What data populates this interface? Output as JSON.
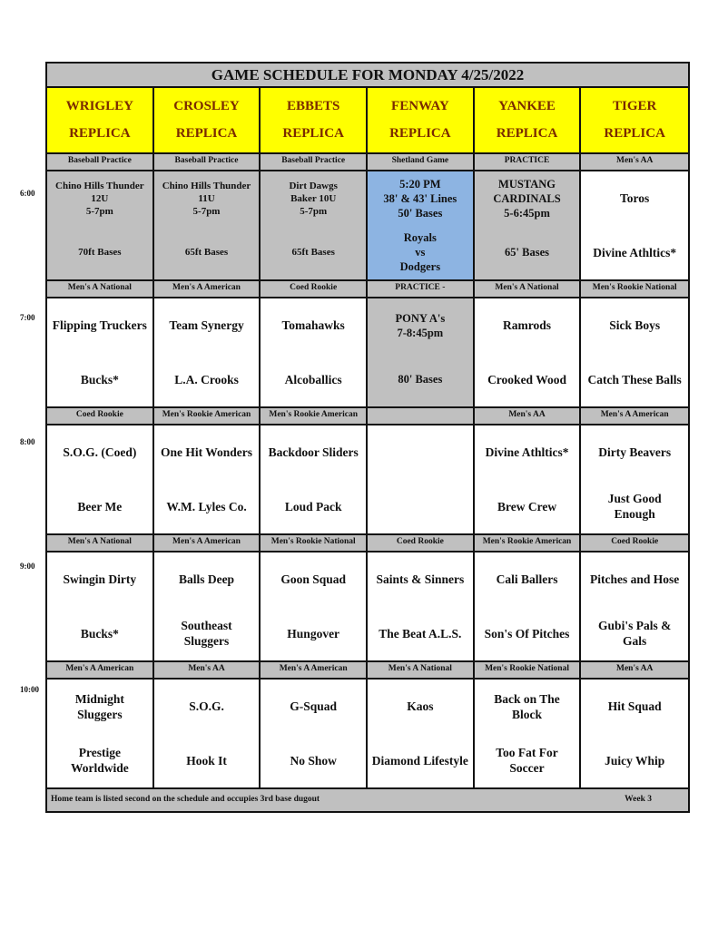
{
  "title": "GAME SCHEDULE FOR MONDAY 4/25/2022",
  "fields": [
    {
      "name": "WRIGLEY",
      "sub": "REPLICA"
    },
    {
      "name": "CROSLEY",
      "sub": "REPLICA"
    },
    {
      "name": "EBBETS",
      "sub": "REPLICA"
    },
    {
      "name": "FENWAY",
      "sub": "REPLICA"
    },
    {
      "name": "YANKEE",
      "sub": "REPLICA"
    },
    {
      "name": "TIGER",
      "sub": "REPLICA"
    }
  ],
  "colors": {
    "header": "#ffff00",
    "header_text": "#7a2a00",
    "label": "#c0c0c0",
    "practice": "#c0c0c0",
    "shetland": "#8db4e2",
    "game": "#ffffff"
  },
  "slots": [
    {
      "time": "6:00",
      "labels": [
        "Baseball Practice",
        "Baseball Practice",
        "Baseball Practice",
        "Shetland Game",
        "PRACTICE",
        "Men's AA"
      ],
      "cells": [
        {
          "bg": "#c0c0c0",
          "small": true,
          "top": [
            "Chino Hills Thunder",
            "12U",
            "5-7pm"
          ],
          "bottom": [
            "70ft Bases"
          ]
        },
        {
          "bg": "#c0c0c0",
          "small": true,
          "top": [
            "Chino Hills Thunder",
            "11U",
            "5-7pm"
          ],
          "bottom": [
            "65ft Bases"
          ]
        },
        {
          "bg": "#c0c0c0",
          "small": true,
          "top": [
            "Dirt Dawgs",
            "Baker 10U",
            "5-7pm"
          ],
          "bottom": [
            "65ft Bases"
          ]
        },
        {
          "bg": "#8db4e2",
          "blue": true,
          "top": [
            "5:20 PM",
            "38' & 43' Lines",
            "50' Bases"
          ],
          "bottom": [
            "Royals",
            "vs",
            "Dodgers"
          ]
        },
        {
          "bg": "#c0c0c0",
          "blue": true,
          "top": [
            "MUSTANG",
            "CARDINALS",
            "5-6:45pm"
          ],
          "bottom": [
            "65' Bases"
          ]
        },
        {
          "bg": "#ffffff",
          "top": [
            "Toros"
          ],
          "bottom": [
            "Divine Athltics*"
          ]
        }
      ]
    },
    {
      "time": "7:00",
      "labels": [
        "Men's A National",
        "Men's A American",
        "Coed Rookie",
        "PRACTICE -",
        "Men's A National",
        "Men's Rookie National"
      ],
      "cells": [
        {
          "bg": "#ffffff",
          "top": [
            "Flipping Truckers"
          ],
          "bottom": [
            "Bucks*"
          ]
        },
        {
          "bg": "#ffffff",
          "top": [
            "Team Synergy"
          ],
          "bottom": [
            "L.A. Crooks"
          ]
        },
        {
          "bg": "#ffffff",
          "top": [
            "Tomahawks"
          ],
          "bottom": [
            "Alcoballics"
          ]
        },
        {
          "bg": "#c0c0c0",
          "blue": true,
          "top": [
            "PONY A's",
            "7-8:45pm"
          ],
          "bottom": [
            "80' Bases"
          ]
        },
        {
          "bg": "#ffffff",
          "top": [
            "Ramrods"
          ],
          "bottom": [
            "Crooked Wood"
          ]
        },
        {
          "bg": "#ffffff",
          "top": [
            "Sick Boys"
          ],
          "bottom": [
            "Catch These Balls"
          ]
        }
      ]
    },
    {
      "time": "8:00",
      "labels": [
        "Coed Rookie",
        "Men's Rookie American",
        "Men's Rookie American",
        "",
        "Men's AA",
        "Men's A American"
      ],
      "cells": [
        {
          "bg": "#ffffff",
          "top": [
            "S.O.G. (Coed)"
          ],
          "bottom": [
            "Beer Me"
          ]
        },
        {
          "bg": "#ffffff",
          "top": [
            "One Hit Wonders"
          ],
          "bottom": [
            "W.M. Lyles Co."
          ]
        },
        {
          "bg": "#ffffff",
          "top": [
            "Backdoor Sliders"
          ],
          "bottom": [
            "Loud Pack"
          ]
        },
        {
          "bg": "#ffffff",
          "top": [],
          "bottom": []
        },
        {
          "bg": "#ffffff",
          "top": [
            "Divine Athltics*"
          ],
          "bottom": [
            "Brew Crew"
          ]
        },
        {
          "bg": "#ffffff",
          "top": [
            "Dirty Beavers"
          ],
          "bottom": [
            "Just Good",
            "Enough"
          ]
        }
      ]
    },
    {
      "time": "9:00",
      "labels": [
        "Men's A National",
        "Men's A American",
        "Men's Rookie National",
        "Coed Rookie",
        "Men's Rookie American",
        "Coed Rookie"
      ],
      "cells": [
        {
          "bg": "#ffffff",
          "top": [
            "Swingin Dirty"
          ],
          "bottom": [
            "Bucks*"
          ]
        },
        {
          "bg": "#ffffff",
          "top": [
            "Balls Deep"
          ],
          "bottom": [
            "Southeast",
            "Sluggers"
          ]
        },
        {
          "bg": "#ffffff",
          "top": [
            "Goon Squad"
          ],
          "bottom": [
            "Hungover"
          ]
        },
        {
          "bg": "#ffffff",
          "top": [
            "Saints & Sinners"
          ],
          "bottom": [
            "The Beat A.L.S."
          ]
        },
        {
          "bg": "#ffffff",
          "top": [
            "Cali Ballers"
          ],
          "bottom": [
            "Son's Of Pitches"
          ]
        },
        {
          "bg": "#ffffff",
          "top": [
            "Pitches and Hose"
          ],
          "bottom": [
            "Gubi's Pals &",
            "Gals"
          ]
        }
      ]
    },
    {
      "time": "10:00",
      "labels": [
        "Men's A American",
        "Men's AA",
        "Men's A American",
        "Men's A National",
        "Men's Rookie National",
        "Men's AA"
      ],
      "cells": [
        {
          "bg": "#ffffff",
          "top": [
            "Midnight",
            "Sluggers"
          ],
          "bottom": [
            "Prestige",
            "Worldwide"
          ]
        },
        {
          "bg": "#ffffff",
          "top": [
            "S.O.G."
          ],
          "bottom": [
            "Hook It"
          ]
        },
        {
          "bg": "#ffffff",
          "top": [
            "G-Squad"
          ],
          "bottom": [
            "No Show"
          ]
        },
        {
          "bg": "#ffffff",
          "top": [
            "Kaos"
          ],
          "bottom": [
            "Diamond Lifestyle"
          ]
        },
        {
          "bg": "#ffffff",
          "top": [
            "Back on The",
            "Block"
          ],
          "bottom": [
            "Too Fat For",
            "Soccer"
          ]
        },
        {
          "bg": "#ffffff",
          "top": [
            "Hit Squad"
          ],
          "bottom": [
            "Juicy Whip"
          ]
        }
      ]
    }
  ],
  "footer": {
    "note": "Home team is listed second on the schedule and occupies 3rd base dugout",
    "week": "Week 3"
  }
}
